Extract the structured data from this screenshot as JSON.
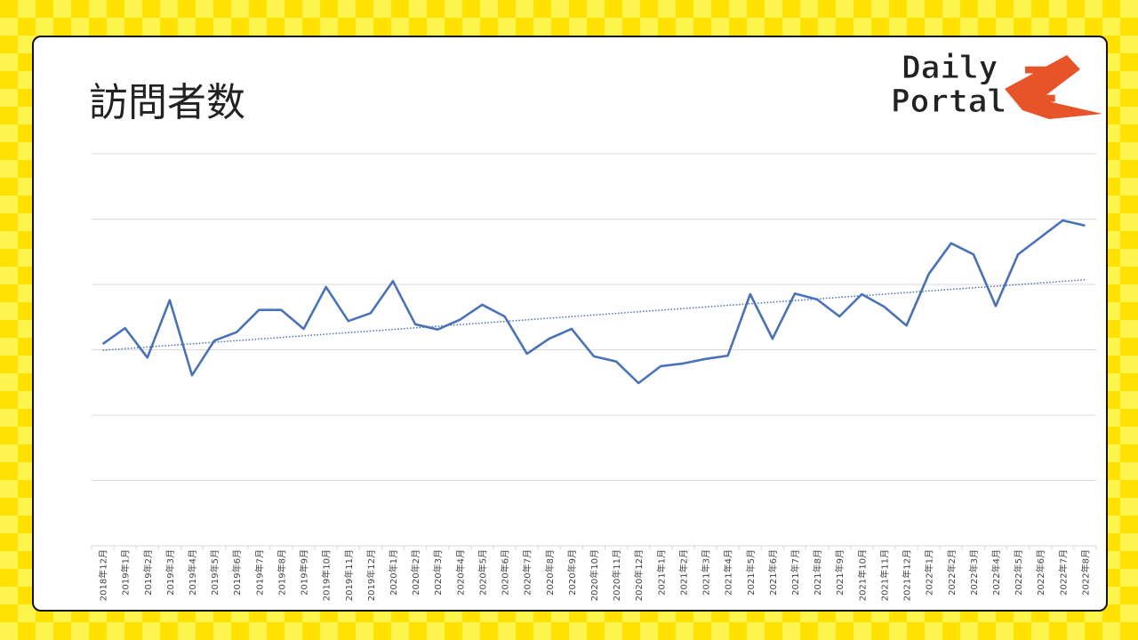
{
  "logo": {
    "line1": "Daily",
    "line2": "Portal",
    "mark": "Z"
  },
  "chart_data": {
    "type": "line",
    "title": "訪問者数",
    "categories": [
      "2018年12月",
      "2019年1月",
      "2019年2月",
      "2019年3月",
      "2019年4月",
      "2019年5月",
      "2019年6月",
      "2019年7月",
      "2019年8月",
      "2019年9月",
      "2019年10月",
      "2019年11月",
      "2019年12月",
      "2020年1月",
      "2020年2月",
      "2020年3月",
      "2020年4月",
      "2020年5月",
      "2020年6月",
      "2020年7月",
      "2020年8月",
      "2020年9月",
      "2020年10月",
      "2020年11月",
      "2020年12月",
      "2021年1月",
      "2021年2月",
      "2021年3月",
      "2021年4月",
      "2021年5月",
      "2021年6月",
      "2021年7月",
      "2021年8月",
      "2021年9月",
      "2021年10月",
      "2021年11月",
      "2021年12月",
      "2022年1月",
      "2022年2月",
      "2022年3月",
      "2022年4月",
      "2022年5月",
      "2022年6月",
      "2022年7月",
      "2022年8月"
    ],
    "values": [
      3.09,
      3.33,
      2.88,
      3.76,
      2.61,
      3.14,
      3.27,
      3.61,
      3.61,
      3.32,
      3.96,
      3.44,
      3.56,
      4.05,
      3.39,
      3.31,
      3.46,
      3.69,
      3.51,
      2.94,
      3.17,
      3.32,
      2.9,
      2.82,
      2.49,
      2.75,
      2.79,
      2.86,
      2.91,
      3.85,
      3.17,
      3.86,
      3.77,
      3.51,
      3.85,
      3.66,
      3.37,
      4.16,
      4.63,
      4.46,
      3.67,
      4.46,
      4.72,
      4.98,
      4.9
    ],
    "color": "#4a72b8",
    "ylim": [
      0,
      6
    ],
    "yticks": [
      0,
      1,
      2,
      3,
      4,
      5,
      6
    ],
    "grid": true,
    "y_tick_labels": false,
    "trendline": {
      "type": "linear",
      "style": "dotted",
      "color": "#4a72b8"
    }
  }
}
